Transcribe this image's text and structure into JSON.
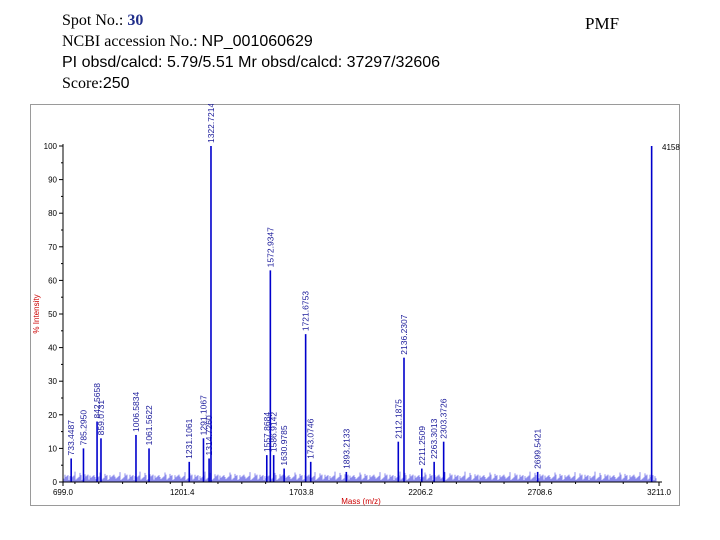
{
  "header": {
    "spot_label": "Spot No.: ",
    "spot_value": "30",
    "ncbi_label": "NCBI accession No.: ",
    "ncbi_value": "NP_001060629",
    "pi_text": "PI obsd/calcd: 5.79/5.51   Mr obsd/calcd: 37297/32606",
    "score_label": "Score:",
    "score_value": "250",
    "tag": "PMF"
  },
  "colors": {
    "peak": "#0000cc",
    "noise": "#1a1ad9",
    "axis": "#000000",
    "axis_title": "#cc0000",
    "tick_text": "#000000",
    "peak_label": "#1a1a9a"
  },
  "chart_data": {
    "type": "line",
    "xlabel": "Mass (m/z)",
    "ylabel": "% Intensity",
    "xlim": [
      699.0,
      3211.0
    ],
    "ylim": [
      0,
      100
    ],
    "x_ticks": [
      "699.0",
      "1201.4",
      "1703.8",
      "2206.2",
      "2708.6",
      "3211.0"
    ],
    "x_tick_values": [
      699.0,
      1201.4,
      1703.8,
      2206.2,
      2708.6,
      3211.0
    ],
    "y_ticks": [
      "0",
      "10",
      "20",
      "30",
      "40",
      "50",
      "60",
      "70",
      "80",
      "90",
      "100"
    ],
    "y_tick_values": [
      0,
      10,
      20,
      30,
      40,
      50,
      60,
      70,
      80,
      90,
      100
    ],
    "max_intensity_label": "4158.",
    "peaks": [
      {
        "mz": 733.4487,
        "intensity": 7,
        "label": "733.4487"
      },
      {
        "mz": 785.295,
        "intensity": 10,
        "label": "785.2950"
      },
      {
        "mz": 842.5658,
        "intensity": 18,
        "label": "842.5658"
      },
      {
        "mz": 859.0731,
        "intensity": 13,
        "label": "859.0731"
      },
      {
        "mz": 1006.5834,
        "intensity": 14,
        "label": "1006.5834"
      },
      {
        "mz": 1061.5622,
        "intensity": 10,
        "label": "1061.5622"
      },
      {
        "mz": 1231.1061,
        "intensity": 6,
        "label": "1231.1061"
      },
      {
        "mz": 1291.1067,
        "intensity": 13,
        "label": "1291.1067"
      },
      {
        "mz": 1314.726,
        "intensity": 7,
        "label": "1314.7260"
      },
      {
        "mz": 1322.7214,
        "intensity": 100,
        "label": "1322.7214"
      },
      {
        "mz": 1557.8684,
        "intensity": 8,
        "label": "1557.8684"
      },
      {
        "mz": 1572.9347,
        "intensity": 63,
        "label": "1572.9347"
      },
      {
        "mz": 1586.9142,
        "intensity": 8,
        "label": "1586.9142"
      },
      {
        "mz": 1630.9785,
        "intensity": 4,
        "label": "1630.9785"
      },
      {
        "mz": 1721.6753,
        "intensity": 44,
        "label": "1721.6753"
      },
      {
        "mz": 1743.0746,
        "intensity": 6,
        "label": "1743.0746"
      },
      {
        "mz": 1893.2133,
        "intensity": 3,
        "label": "1893.2133"
      },
      {
        "mz": 2112.1875,
        "intensity": 12,
        "label": "2112.1875"
      },
      {
        "mz": 2136.2307,
        "intensity": 37,
        "label": "2136.2307"
      },
      {
        "mz": 2211.2509,
        "intensity": 4,
        "label": "2211.2509"
      },
      {
        "mz": 2263.3013,
        "intensity": 6,
        "label": "2263.3013"
      },
      {
        "mz": 2303.3726,
        "intensity": 12,
        "label": "2303.3726"
      },
      {
        "mz": 2305.0001,
        "intensity": 3,
        "label": ""
      },
      {
        "mz": 2699.5421,
        "intensity": 3,
        "label": "2699.5421"
      },
      {
        "mz": 3180.0,
        "intensity": 100,
        "label": ""
      }
    ]
  }
}
